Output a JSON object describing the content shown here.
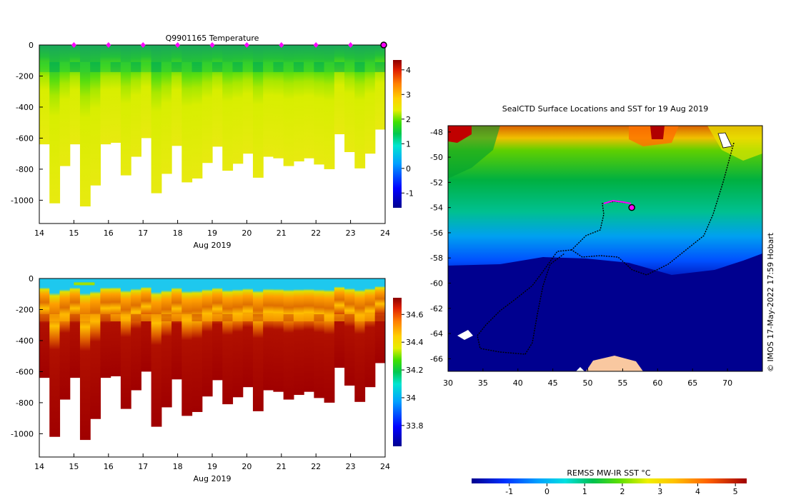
{
  "chart_data": [
    {
      "type": "heatmap",
      "panel": "temperature-profile",
      "title": "Q9901165  Temperature",
      "xlabel": "Aug 2019",
      "ylabel": "",
      "x_ticks": [
        "14",
        "15",
        "16",
        "17",
        "18",
        "19",
        "20",
        "21",
        "22",
        "23",
        "24"
      ],
      "xlim": [
        14,
        24
      ],
      "y_ticks": [
        "0",
        "-200",
        "-400",
        "-600",
        "-800",
        "-1000"
      ],
      "ylim": [
        -1150,
        0
      ],
      "colorbar": {
        "ticks": [
          "-1",
          "0",
          "1",
          "2",
          "3",
          "4"
        ],
        "range": [
          -1.6,
          4.4
        ]
      },
      "surface_markers_days": [
        15,
        16,
        17,
        18,
        19,
        20,
        21,
        22,
        23
      ],
      "current_marker_day": 24,
      "profile_max_depths": [
        -640,
        -1020,
        -780,
        -640,
        -1040,
        -905,
        -640,
        -630,
        -840,
        -720,
        -600,
        -955,
        -830,
        -650,
        -885,
        -860,
        -760,
        -655,
        -810,
        -765,
        -700,
        -855,
        -720,
        -730,
        -780,
        -750,
        -730,
        -770,
        -800,
        -575,
        -690,
        -795,
        -700,
        -545
      ],
      "surface_temperature": 1.1,
      "layer_temperature_200_400": 1.9,
      "deep_temperature": 2.3
    },
    {
      "type": "heatmap",
      "panel": "salinity-profile",
      "title": "",
      "xlabel": "Aug 2019",
      "x_ticks": [
        "14",
        "15",
        "16",
        "17",
        "18",
        "19",
        "20",
        "21",
        "22",
        "23",
        "24"
      ],
      "xlim": [
        14,
        24
      ],
      "y_ticks": [
        "0",
        "-200",
        "-400",
        "-600",
        "-800",
        "-1000"
      ],
      "ylim": [
        -1150,
        0
      ],
      "colorbar": {
        "ticks": [
          "33.8",
          "34",
          "34.2",
          "34.4",
          "34.6"
        ],
        "range": [
          33.65,
          34.72
        ]
      },
      "surface_salinity": 33.9,
      "deep_salinity": 34.7
    },
    {
      "type": "map",
      "panel": "sst-map",
      "title": "SealCTD Surface Locations and SST for 19 Aug 2019",
      "x_ticks": [
        "30",
        "35",
        "40",
        "45",
        "50",
        "55",
        "60",
        "65",
        "70"
      ],
      "xlim": [
        30,
        75
      ],
      "y_ticks": [
        "-48",
        "-50",
        "-52",
        "-54",
        "-56",
        "-58",
        "-60",
        "-62",
        "-64",
        "-66"
      ],
      "ylim": [
        -67,
        -47.5
      ],
      "current_position": {
        "lon": 56.3,
        "lat": -54.0
      },
      "side_credit": "© IMOS 17-May-2022 17:59 Hobart"
    }
  ],
  "sst_colorbar": {
    "label": "REMSS MW-IR SST °C",
    "ticks": [
      "-1",
      "0",
      "1",
      "2",
      "3",
      "4",
      "5"
    ],
    "range": [
      -2,
      5.3
    ]
  },
  "colors": {
    "marker_magenta": "#ff00ff",
    "deep_blue": "#00008f",
    "dark_red": "#a50000",
    "cyan": "#1ec8ee"
  }
}
